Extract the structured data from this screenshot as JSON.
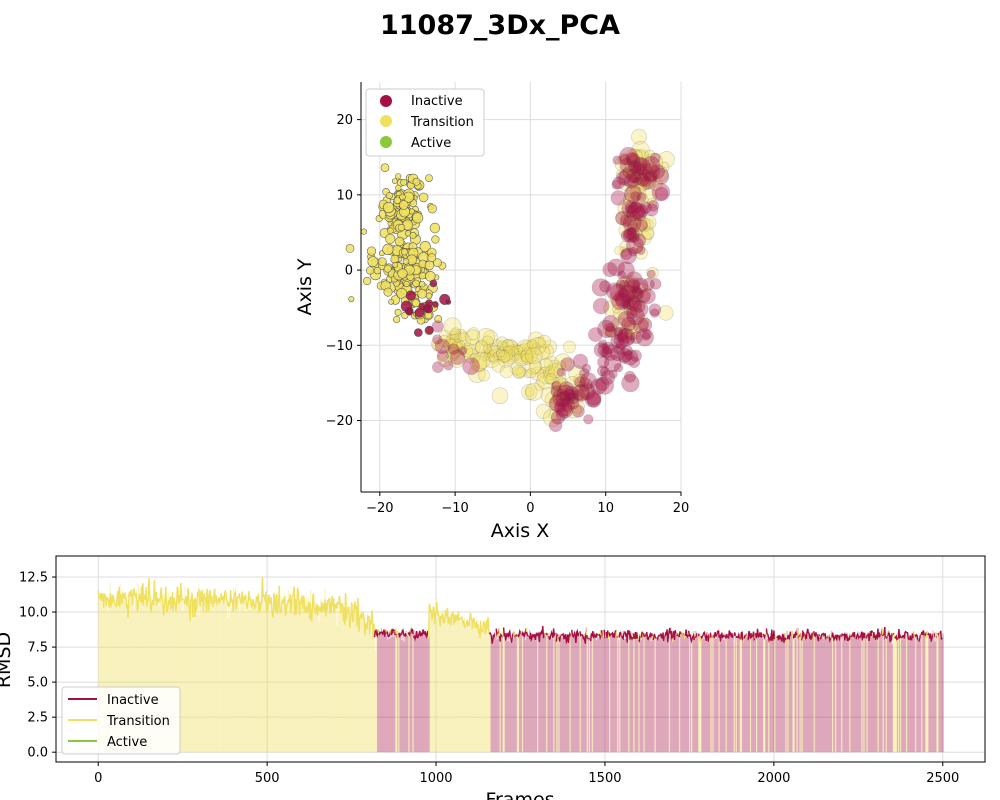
{
  "figure": {
    "title": "11087_3Dx_PCA"
  },
  "colors": {
    "inactive": "#a50f46",
    "transition": "#f0e060",
    "active": "#8cc83c",
    "grid": "#dddddd",
    "axis": "#000000"
  },
  "chart_data": [
    {
      "type": "scatter",
      "title": "",
      "xlabel": "Axis X",
      "ylabel": "Axis Y",
      "xlim": [
        -22.5,
        20
      ],
      "ylim": [
        -29.5,
        25
      ],
      "xticks": [
        -20,
        -10,
        0,
        10,
        20
      ],
      "yticks": [
        -20,
        -10,
        0,
        10,
        20
      ],
      "xtick_labels": [
        "−20",
        "−10",
        "0",
        "10",
        "20"
      ],
      "ytick_labels": [
        "−20",
        "−10",
        "0",
        "10",
        "20"
      ],
      "grid": true,
      "legend": {
        "placement": "top-left",
        "entries": [
          "Inactive",
          "Transition",
          "Active"
        ]
      },
      "series": [
        {
          "name": "Inactive",
          "color": "#a50f46",
          "clusters": [
            {
              "x": 14,
              "y": 13,
              "sx": 1.6,
              "sy": 1.8,
              "n": 40
            },
            {
              "x": 14,
              "y": 5,
              "sx": 1.2,
              "sy": 2.5,
              "n": 25
            },
            {
              "x": 13,
              "y": -4,
              "sx": 2.0,
              "sy": 2.5,
              "n": 50
            },
            {
              "x": 12,
              "y": -11,
              "sx": 1.5,
              "sy": 2.0,
              "n": 30
            },
            {
              "x": 8,
              "y": -15,
              "sx": 2.0,
              "sy": 1.5,
              "n": 20
            },
            {
              "x": 5,
              "y": -17,
              "sx": 1.5,
              "sy": 1.5,
              "n": 25
            },
            {
              "x": -14,
              "y": -5,
              "sx": 1.5,
              "sy": 1.5,
              "n": 15
            },
            {
              "x": -10,
              "y": -11,
              "sx": 1.5,
              "sy": 1.0,
              "n": 10
            }
          ]
        },
        {
          "name": "Transition",
          "color": "#f0e060",
          "clusters": [
            {
              "x": -17,
              "y": 8,
              "sx": 1.5,
              "sy": 2.2,
              "n": 120
            },
            {
              "x": -17,
              "y": 0,
              "sx": 2.0,
              "sy": 2.5,
              "n": 140
            },
            {
              "x": -14,
              "y": -6,
              "sx": 1.0,
              "sy": 1.5,
              "n": 20
            },
            {
              "x": -10,
              "y": -10,
              "sx": 1.5,
              "sy": 1.2,
              "n": 30
            },
            {
              "x": -5,
              "y": -11,
              "sx": 2.0,
              "sy": 1.0,
              "n": 40
            },
            {
              "x": 0,
              "y": -12,
              "sx": 2.0,
              "sy": 1.5,
              "n": 40
            },
            {
              "x": 4,
              "y": -15,
              "sx": 2.0,
              "sy": 2.0,
              "n": 40
            },
            {
              "x": 14,
              "y": 13,
              "sx": 1.6,
              "sy": 1.5,
              "n": 60
            },
            {
              "x": 14,
              "y": 5,
              "sx": 1.3,
              "sy": 2.5,
              "n": 25
            },
            {
              "x": 13,
              "y": -5,
              "sx": 1.8,
              "sy": 2.5,
              "n": 25
            }
          ]
        },
        {
          "name": "Active",
          "color": "#8cc83c",
          "clusters": []
        }
      ]
    },
    {
      "type": "line",
      "title": "",
      "xlabel": "Frames",
      "ylabel": "RMSD",
      "xlim": [
        -125,
        2625
      ],
      "ylim": [
        -0.7,
        14
      ],
      "xticks": [
        0,
        500,
        1000,
        1500,
        2000,
        2500
      ],
      "yticks": [
        0.0,
        2.5,
        5.0,
        7.5,
        10.0,
        12.5
      ],
      "xtick_labels": [
        "0",
        "500",
        "1000",
        "1500",
        "2000",
        "2500"
      ],
      "ytick_labels": [
        "0.0",
        "2.5",
        "5.0",
        "7.5",
        "10.0",
        "12.5"
      ],
      "grid": true,
      "legend": {
        "placement": "bottom-left",
        "entries": [
          "Inactive",
          "Transition",
          "Active"
        ]
      },
      "n_frames": 2500,
      "segments": [
        {
          "start": 0,
          "end": 820,
          "state": "Transition",
          "level_start": 11.0,
          "level_end": 10.5,
          "noise": 0.9
        },
        {
          "start": 820,
          "end": 980,
          "state": "Inactive",
          "level_start": 8.5,
          "level_end": 8.4,
          "noise": 0.35
        },
        {
          "start": 980,
          "end": 1160,
          "state": "Transition",
          "level_start": 10.0,
          "level_end": 8.8,
          "noise": 0.6
        },
        {
          "start": 1160,
          "end": 2500,
          "state": "Inactive",
          "level_start": 8.3,
          "level_end": 8.3,
          "noise": 0.35
        }
      ]
    }
  ]
}
